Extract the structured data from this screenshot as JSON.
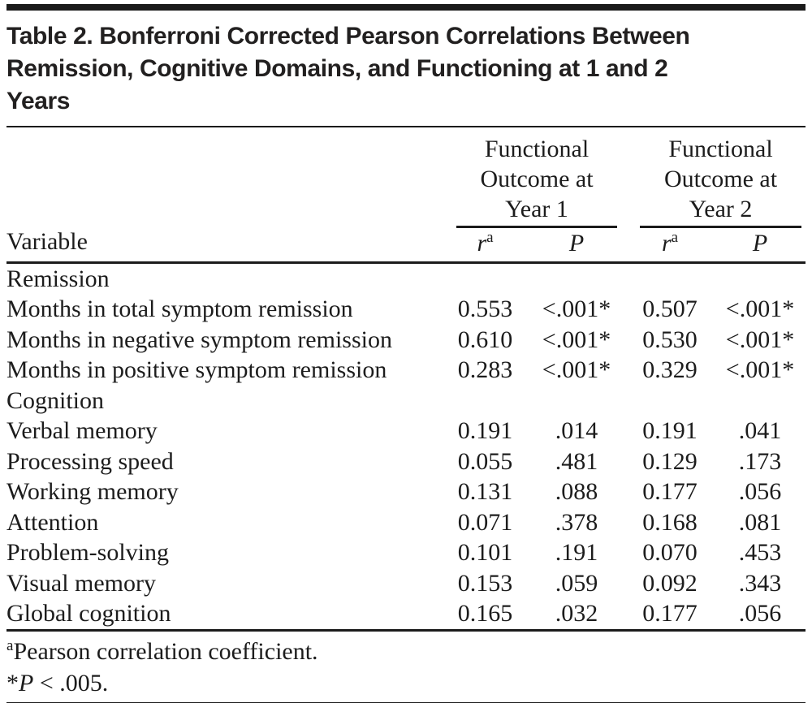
{
  "meta": {
    "background_color": "#ffffff",
    "text_color": "#1c1c1c",
    "rule_color": "#1b1b1b"
  },
  "table": {
    "title": "Table 2. Bonferroni Corrected Pearson Correlations Between\nRemission, Cognitive Domains, and Functioning at 1 and 2\nYears",
    "header": {
      "variable_label": "Variable",
      "groups": [
        {
          "label": "Functional\nOutcome at\nYear 1",
          "sub_r": "r",
          "sub_r_sup": "a",
          "sub_p": "P"
        },
        {
          "label": "Functional\nOutcome at\nYear 2",
          "sub_r": "r",
          "sub_r_sup": "a",
          "sub_p": "P"
        }
      ]
    },
    "rows": [
      {
        "type": "section",
        "label": "Remission"
      },
      {
        "type": "data",
        "label": "Months in total symptom remission",
        "values": [
          "0.553",
          "<.001*",
          "0.507",
          "<.001*"
        ]
      },
      {
        "type": "data",
        "label": "Months in negative symptom remission",
        "values": [
          "0.610",
          "<.001*",
          "0.530",
          "<.001*"
        ]
      },
      {
        "type": "data",
        "label": "Months in positive symptom remission",
        "values": [
          "0.283",
          "<.001*",
          "0.329",
          "<.001*"
        ]
      },
      {
        "type": "section",
        "label": "Cognition"
      },
      {
        "type": "data",
        "label": "Verbal memory",
        "values": [
          "0.191",
          ".014",
          "0.191",
          ".041"
        ]
      },
      {
        "type": "data",
        "label": "Processing speed",
        "values": [
          "0.055",
          ".481",
          "0.129",
          ".173"
        ]
      },
      {
        "type": "data",
        "label": "Working memory",
        "values": [
          "0.131",
          ".088",
          "0.177",
          ".056"
        ]
      },
      {
        "type": "data",
        "label": "Attention",
        "values": [
          "0.071",
          ".378",
          "0.168",
          ".081"
        ]
      },
      {
        "type": "data",
        "label": "Problem-solving",
        "values": [
          "0.101",
          ".191",
          "0.070",
          ".453"
        ]
      },
      {
        "type": "data",
        "label": "Visual memory",
        "values": [
          "0.153",
          ".059",
          "0.092",
          ".343"
        ]
      },
      {
        "type": "data",
        "label": "Global cognition",
        "values": [
          "0.165",
          ".032",
          "0.177",
          ".056"
        ]
      }
    ],
    "footnotes": [
      {
        "sup": "a",
        "text": "Pearson correlation coefficient."
      },
      {
        "star": "*",
        "p": "P",
        "text": " < .005."
      }
    ]
  },
  "chart_data": {
    "type": "table",
    "title": "Table 2. Bonferroni Corrected Pearson Correlations Between Remission, Cognitive Domains, and Functioning at 1 and 2 Years",
    "categories": [
      "Months in total symptom remission",
      "Months in negative symptom remission",
      "Months in positive symptom remission",
      "Verbal memory",
      "Processing speed",
      "Working memory",
      "Attention",
      "Problem-solving",
      "Visual memory",
      "Global cognition"
    ],
    "series": [
      {
        "name": "Functional Outcome at Year 1 r",
        "values": [
          0.553,
          0.61,
          0.283,
          0.191,
          0.055,
          0.131,
          0.071,
          0.101,
          0.153,
          0.165
        ]
      },
      {
        "name": "Functional Outcome at Year 1 P",
        "values": [
          "<.001*",
          "<.001*",
          "<.001*",
          ".014",
          ".481",
          ".088",
          ".378",
          ".191",
          ".059",
          ".032"
        ]
      },
      {
        "name": "Functional Outcome at Year 2 r",
        "values": [
          0.507,
          0.53,
          0.329,
          0.191,
          0.129,
          0.177,
          0.168,
          0.07,
          0.092,
          0.177
        ]
      },
      {
        "name": "Functional Outcome at Year 2 P",
        "values": [
          "<.001*",
          "<.001*",
          "<.001*",
          ".041",
          ".173",
          ".056",
          ".081",
          ".453",
          ".343",
          ".056"
        ]
      }
    ]
  }
}
